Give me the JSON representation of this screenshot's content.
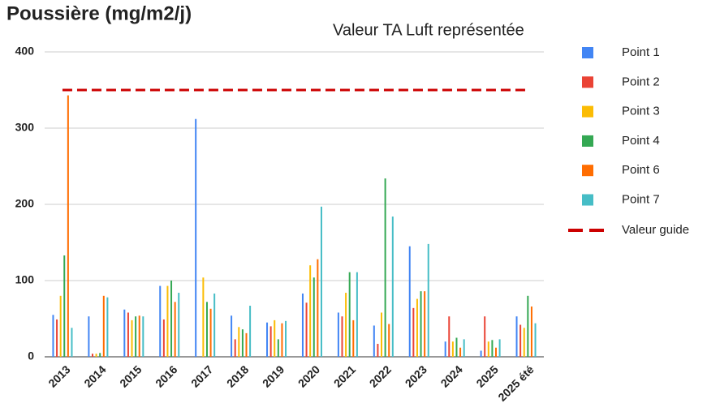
{
  "chart_data": {
    "type": "bar",
    "title": "Poussière (mg/m2/j)",
    "subtitle": "Valeur TA Luft représentée",
    "categories": [
      "2013",
      "2014",
      "2015",
      "2016",
      "2017",
      "2018",
      "2019",
      "2020",
      "2021",
      "2022",
      "2023",
      "2024",
      "2025",
      "2025 été"
    ],
    "series": [
      {
        "name": "Point 1",
        "color": "#4285f4",
        "values": [
          55,
          53,
          62,
          93,
          312,
          54,
          45,
          83,
          58,
          41,
          145,
          20,
          8,
          53
        ]
      },
      {
        "name": "Point 2",
        "color": "#ea4335",
        "values": [
          49,
          4,
          58,
          49,
          0,
          23,
          40,
          71,
          53,
          17,
          64,
          53,
          53,
          42
        ]
      },
      {
        "name": "Point 3",
        "color": "#fbbc04",
        "values": [
          80,
          4,
          48,
          93,
          104,
          39,
          48,
          120,
          84,
          58,
          76,
          20,
          20,
          38
        ]
      },
      {
        "name": "Point 4",
        "color": "#34a853",
        "values": [
          133,
          5,
          53,
          100,
          72,
          36,
          23,
          104,
          111,
          234,
          86,
          25,
          22,
          80
        ]
      },
      {
        "name": "Point 6",
        "color": "#ff6d01",
        "values": [
          343,
          80,
          54,
          72,
          63,
          31,
          44,
          128,
          48,
          43,
          86,
          12,
          12,
          66
        ]
      },
      {
        "name": "Point 7",
        "color": "#46bdc6",
        "values": [
          38,
          78,
          53,
          84,
          83,
          67,
          47,
          197,
          111,
          184,
          148,
          23,
          23,
          44
        ]
      }
    ],
    "guide": {
      "name": "Valeur guide",
      "value": 350,
      "color": "#cc0000"
    },
    "ylim": [
      0,
      400
    ],
    "yticks": [
      0,
      100,
      200,
      300,
      400
    ],
    "grid": true,
    "legend": "right"
  }
}
